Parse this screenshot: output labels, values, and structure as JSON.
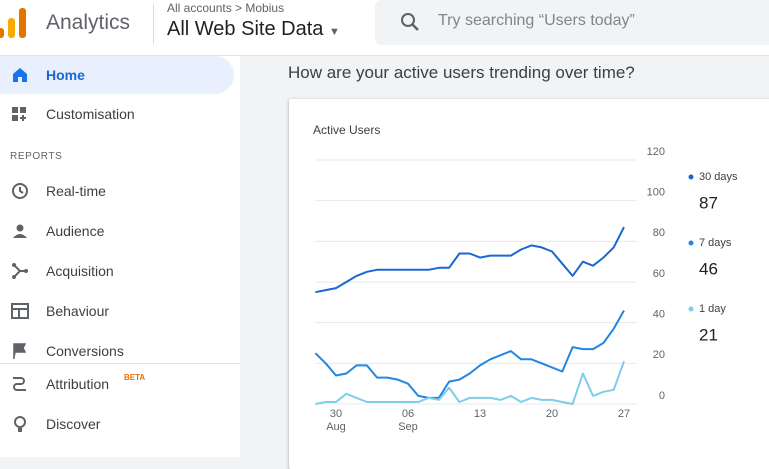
{
  "header": {
    "product": "Analytics",
    "breadcrumb_root": "All accounts",
    "breadcrumb_child": "Mobius",
    "view": "All Web Site Data",
    "search_placeholder": "Try searching “Users today”"
  },
  "sidebar": {
    "items": [
      {
        "label": "Home"
      },
      {
        "label": "Customisation"
      }
    ],
    "section": "REPORTS",
    "reports": [
      {
        "label": "Real-time"
      },
      {
        "label": "Audience"
      },
      {
        "label": "Acquisition"
      },
      {
        "label": "Behaviour"
      },
      {
        "label": "Conversions"
      }
    ],
    "extra": [
      {
        "label": "Attribution",
        "badge": "BETA"
      },
      {
        "label": "Discover"
      }
    ]
  },
  "question": "How are your active users trending over time?",
  "chart_data": {
    "type": "line",
    "title": "Active Users",
    "categories": [
      null,
      null,
      "30 Aug",
      null,
      null,
      null,
      null,
      null,
      null,
      "06 Sep",
      null,
      null,
      null,
      null,
      null,
      null,
      "13",
      null,
      null,
      null,
      null,
      null,
      null,
      "20",
      null,
      null,
      null,
      null,
      null,
      null,
      "27"
    ],
    "series": [
      {
        "name": "30 days",
        "color": "#1a67d2",
        "current": 87,
        "values": [
          55,
          56,
          57,
          60,
          63,
          65,
          66,
          66,
          66,
          66,
          66,
          66,
          67,
          67,
          74,
          74,
          72,
          73,
          73,
          73,
          76,
          78,
          77,
          75,
          69,
          63,
          70,
          68,
          72,
          77,
          87
        ]
      },
      {
        "name": "7 days",
        "color": "#2286e2",
        "current": 46,
        "values": [
          25,
          20,
          14,
          15,
          19,
          19,
          13,
          13,
          12,
          10,
          4,
          3,
          3,
          11,
          12,
          15,
          19,
          22,
          24,
          26,
          22,
          22,
          20,
          18,
          16,
          28,
          27,
          27,
          30,
          37,
          46
        ]
      },
      {
        "name": "1 day",
        "color": "#7fcde8",
        "current": 21,
        "values": [
          0,
          1,
          1,
          5,
          3,
          1,
          1,
          1,
          1,
          1,
          1,
          3,
          2,
          8,
          1,
          3,
          3,
          3,
          2,
          4,
          1,
          3,
          2,
          2,
          1,
          0,
          15,
          4,
          6,
          7,
          21
        ]
      }
    ],
    "ylim": [
      0,
      120
    ],
    "yticks": [
      0,
      20,
      40,
      60,
      80,
      100,
      120
    ],
    "grid": true,
    "legend": "right"
  }
}
